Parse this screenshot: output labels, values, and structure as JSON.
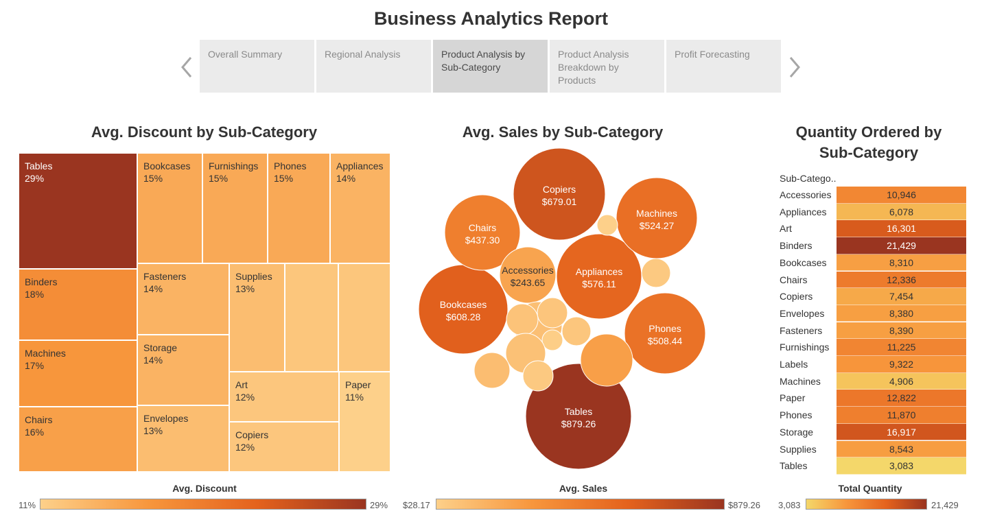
{
  "report_title": "Business Analytics Report",
  "nav": {
    "prev_icon": "chevron-left-icon",
    "next_icon": "chevron-right-icon",
    "tabs": [
      {
        "label": "Overall Summary",
        "active": false
      },
      {
        "label": "Regional Analysis",
        "active": false
      },
      {
        "label": "Product Analysis by Sub-Category",
        "active": true
      },
      {
        "label": "Product Analysis Breakdown by Products",
        "active": false
      },
      {
        "label": "Profit Forecasting",
        "active": false
      }
    ]
  },
  "colors": {
    "scale_light": "#fdd08a",
    "scale_mid": "#f7963c",
    "scale_orange": "#e4621d",
    "scale_dark": "#9a3520",
    "qty_low": "#f4d76a"
  },
  "chart_data": [
    {
      "type": "treemap",
      "title": "Avg. Discount by Sub-Category",
      "legend_title": "Avg. Discount",
      "legend_min": "11%",
      "legend_max": "29%",
      "value_range": [
        11,
        29
      ],
      "items": [
        {
          "label": "Tables",
          "value_text": "29%",
          "value": 29
        },
        {
          "label": "Binders",
          "value_text": "18%",
          "value": 18
        },
        {
          "label": "Machines",
          "value_text": "17%",
          "value": 17
        },
        {
          "label": "Chairs",
          "value_text": "16%",
          "value": 16
        },
        {
          "label": "Bookcases",
          "value_text": "15%",
          "value": 15
        },
        {
          "label": "Furnishings",
          "value_text": "15%",
          "value": 15
        },
        {
          "label": "Phones",
          "value_text": "15%",
          "value": 15
        },
        {
          "label": "Appliances",
          "value_text": "14%",
          "value": 14
        },
        {
          "label": "Fasteners",
          "value_text": "14%",
          "value": 14
        },
        {
          "label": "Storage",
          "value_text": "14%",
          "value": 14
        },
        {
          "label": "Envelopes",
          "value_text": "13%",
          "value": 13
        },
        {
          "label": "Supplies",
          "value_text": "13%",
          "value": 13
        },
        {
          "label": "Art",
          "value_text": "12%",
          "value": 12
        },
        {
          "label": "Copiers",
          "value_text": "12%",
          "value": 12
        },
        {
          "label": "Paper",
          "value_text": "11%",
          "value": 11
        }
      ]
    },
    {
      "type": "bubble",
      "title": "Avg. Sales by Sub-Category",
      "legend_title": "Avg. Sales",
      "legend_min": "$28.17",
      "legend_max": "$879.26",
      "value_range": [
        28.17,
        879.26
      ],
      "bubbles": [
        {
          "label": "Tables",
          "value_text": "$879.26",
          "value": 879.26
        },
        {
          "label": "Copiers",
          "value_text": "$679.01",
          "value": 679.01
        },
        {
          "label": "Bookcases",
          "value_text": "$608.28",
          "value": 608.28
        },
        {
          "label": "Appliances",
          "value_text": "$576.11",
          "value": 576.11
        },
        {
          "label": "Machines",
          "value_text": "$524.27",
          "value": 524.27
        },
        {
          "label": "Phones",
          "value_text": "$508.44",
          "value": 508.44
        },
        {
          "label": "Chairs",
          "value_text": "$437.30",
          "value": 437.3
        },
        {
          "label": "Accessories",
          "value_text": "$243.65",
          "value": 243.65
        },
        {
          "label": "",
          "value": 28.17
        },
        {
          "label": "",
          "value": 60
        },
        {
          "label": "",
          "value": 110
        },
        {
          "label": "",
          "value": 90
        },
        {
          "label": "",
          "value": 80
        },
        {
          "label": "",
          "value": 75
        },
        {
          "label": "",
          "value": 40
        },
        {
          "label": "",
          "value": 100
        },
        {
          "label": "",
          "value": 270
        },
        {
          "label": "",
          "value": 120
        },
        {
          "label": "",
          "value": 60
        }
      ]
    },
    {
      "type": "table",
      "title": "Quantity Ordered by Sub-Category",
      "column_header": "Sub-Catego..",
      "legend_title": "Total Quantity",
      "legend_min": "3,083",
      "legend_max": "21,429",
      "value_range": [
        3083,
        21429
      ],
      "rows": [
        {
          "label": "Accessories",
          "value_text": "10,946",
          "value": 10946
        },
        {
          "label": "Appliances",
          "value_text": "6,078",
          "value": 6078
        },
        {
          "label": "Art",
          "value_text": "16,301",
          "value": 16301
        },
        {
          "label": "Binders",
          "value_text": "21,429",
          "value": 21429
        },
        {
          "label": "Bookcases",
          "value_text": "8,310",
          "value": 8310
        },
        {
          "label": "Chairs",
          "value_text": "12,336",
          "value": 12336
        },
        {
          "label": "Copiers",
          "value_text": "7,454",
          "value": 7454
        },
        {
          "label": "Envelopes",
          "value_text": "8,380",
          "value": 8380
        },
        {
          "label": "Fasteners",
          "value_text": "8,390",
          "value": 8390
        },
        {
          "label": "Furnishings",
          "value_text": "11,225",
          "value": 11225
        },
        {
          "label": "Labels",
          "value_text": "9,322",
          "value": 9322
        },
        {
          "label": "Machines",
          "value_text": "4,906",
          "value": 4906
        },
        {
          "label": "Paper",
          "value_text": "12,822",
          "value": 12822
        },
        {
          "label": "Phones",
          "value_text": "11,870",
          "value": 11870
        },
        {
          "label": "Storage",
          "value_text": "16,917",
          "value": 16917
        },
        {
          "label": "Supplies",
          "value_text": "8,543",
          "value": 8543
        },
        {
          "label": "Tables",
          "value_text": "3,083",
          "value": 3083
        }
      ]
    }
  ]
}
